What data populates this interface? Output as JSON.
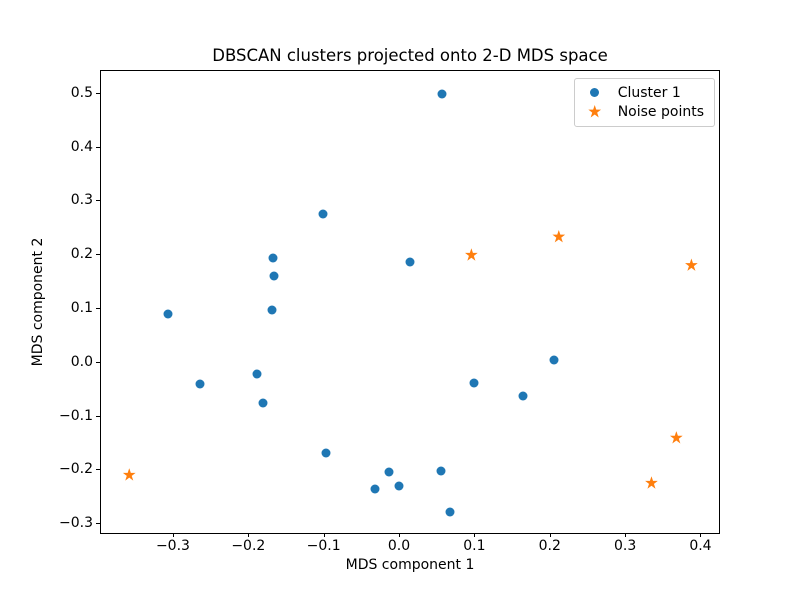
{
  "figure": {
    "title": "DBSCAN clusters projected onto 2-D MDS space",
    "xlabel": "MDS component 1",
    "ylabel": "MDS component 2"
  },
  "legend": {
    "position": "upper right",
    "items": [
      {
        "label": "Cluster 1",
        "marker": "circle-icon"
      },
      {
        "label": "Noise points",
        "marker": "star-icon"
      }
    ]
  },
  "colors": {
    "cluster1": "#1f77b4",
    "noise": "#ff7f0e",
    "background": "#ffffff",
    "spine": "#000000",
    "legend_border": "#cccccc",
    "text": "#000000"
  },
  "chart_data": {
    "type": "scatter",
    "title": "DBSCAN clusters projected onto 2-D MDS space",
    "xlabel": "MDS component 1",
    "ylabel": "MDS component 2",
    "xlim": [
      -0.3955,
      0.4246
    ],
    "ylim": [
      -0.3185,
      0.5407
    ],
    "xticks": [
      -0.3,
      -0.2,
      -0.1,
      0.0,
      0.1,
      0.2,
      0.3,
      0.4
    ],
    "yticks": [
      -0.3,
      -0.2,
      -0.1,
      0.0,
      0.1,
      0.2,
      0.3,
      0.4,
      0.5
    ],
    "grid": false,
    "legend_position": "upper right",
    "series": [
      {
        "name": "Cluster 1",
        "marker": "circle",
        "color": "#1f77b4",
        "points": [
          [
            0.057,
            0.497
          ],
          [
            -0.101,
            0.275
          ],
          [
            -0.167,
            0.193
          ],
          [
            -0.166,
            0.159
          ],
          [
            0.014,
            0.185
          ],
          [
            -0.307,
            0.089
          ],
          [
            -0.168,
            0.096
          ],
          [
            -0.189,
            -0.023
          ],
          [
            -0.264,
            -0.042
          ],
          [
            -0.18,
            -0.077
          ],
          [
            -0.097,
            -0.17
          ],
          [
            -0.013,
            -0.205
          ],
          [
            -0.032,
            -0.236
          ],
          [
            0.0,
            -0.231
          ],
          [
            0.056,
            -0.204
          ],
          [
            0.067,
            -0.279
          ],
          [
            0.099,
            -0.039
          ],
          [
            0.164,
            -0.064
          ],
          [
            0.205,
            0.003
          ]
        ]
      },
      {
        "name": "Noise points",
        "marker": "star",
        "color": "#ff7f0e",
        "points": [
          [
            0.096,
            0.199
          ],
          [
            0.212,
            0.233
          ],
          [
            0.388,
            0.18
          ],
          [
            0.368,
            -0.141
          ],
          [
            0.335,
            -0.225
          ],
          [
            -0.358,
            -0.21
          ]
        ]
      }
    ]
  }
}
